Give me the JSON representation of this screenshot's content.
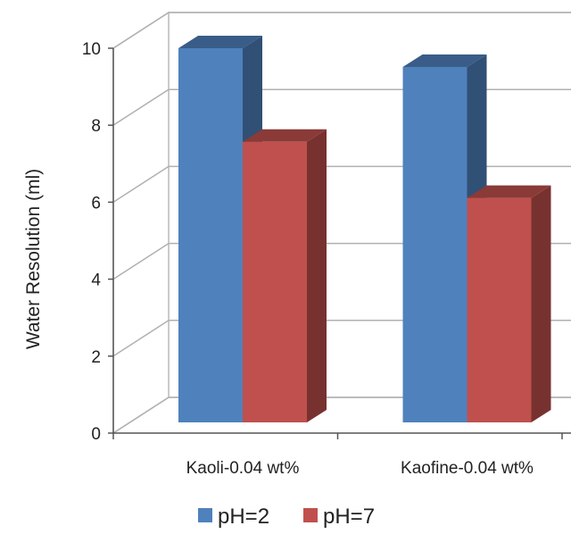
{
  "chart_data": {
    "type": "bar",
    "style": "3d-clustered-column",
    "title": "",
    "xlabel": "",
    "ylabel": "Water Resolution (ml)",
    "ylim": [
      0,
      10
    ],
    "yticks": [
      "0",
      "2",
      "4",
      "6",
      "8",
      "10"
    ],
    "grid": true,
    "legend_position": "bottom",
    "categories": [
      "Kaoli-0.04 wt%",
      "Kaofine-0.04 wt%"
    ],
    "series": [
      {
        "name": "pH=2",
        "values": [
          10.0,
          9.5
        ],
        "color": "#4f81bd"
      },
      {
        "name": "pH=7",
        "values": [
          7.5,
          6.0
        ],
        "color": "#c0504d"
      }
    ]
  }
}
